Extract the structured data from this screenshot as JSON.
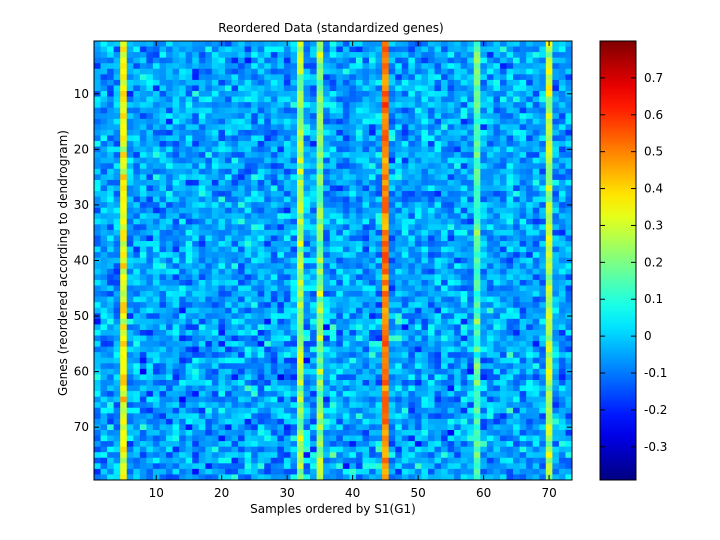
{
  "chart_data": [
    {
      "type": "heatmap",
      "title": "Reordered Data (standardized genes)",
      "xlabel": "Samples ordered by S1(G1)",
      "ylabel": "Genes (reordered according to dendrogram)",
      "n_cols": 73,
      "n_rows": 79,
      "xlim": [
        0.5,
        73.5
      ],
      "ylim": [
        0.5,
        79.5
      ],
      "y_reversed": true,
      "xticks": [
        10,
        20,
        30,
        40,
        50,
        60,
        70
      ],
      "yticks": [
        10,
        20,
        30,
        40,
        50,
        60,
        70
      ],
      "colormap": "jet",
      "value_range": [
        -0.39,
        0.8
      ],
      "baseline_mean": -0.05,
      "high_columns": [
        {
          "column": 5,
          "typical_value": 0.35
        },
        {
          "column": 32,
          "typical_value": 0.25
        },
        {
          "column": 35,
          "typical_value": 0.22
        },
        {
          "column": 45,
          "typical_value": 0.5
        },
        {
          "column": 59,
          "typical_value": 0.15
        },
        {
          "column": 70,
          "typical_value": 0.28
        }
      ]
    },
    {
      "type": "colorbar",
      "ticks": [
        -0.3,
        -0.2,
        -0.1,
        0,
        0.1,
        0.2,
        0.3,
        0.4,
        0.5,
        0.6,
        0.7
      ],
      "tick_labels": [
        "-0.3",
        "-0.2",
        "-0.1",
        "0",
        "0.1",
        "0.2",
        "0.3",
        "0.4",
        "0.5",
        "0.6",
        "0.7"
      ],
      "range": [
        -0.39,
        0.8
      ],
      "colormap": "jet"
    }
  ]
}
